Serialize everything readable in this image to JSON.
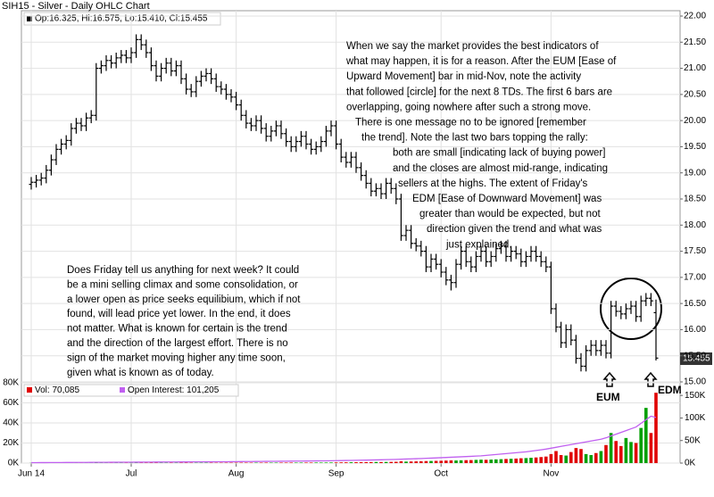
{
  "chart_data": [
    {
      "type": "ohlc",
      "title": "SIH15 - Silver - Daily OHLC Chart",
      "legend": "Op:16.325, Hi:16.575, Lo:15.410, Cl:15.455",
      "last_price": 15.455,
      "color": "#000000",
      "grid": true,
      "categories": [
        "Jun 14",
        null,
        null,
        null,
        null,
        null,
        null,
        null,
        null,
        null,
        null,
        null,
        null,
        null,
        null,
        null,
        null,
        null,
        null,
        null,
        "Jul",
        null,
        null,
        null,
        null,
        null,
        null,
        null,
        null,
        null,
        null,
        null,
        null,
        null,
        null,
        null,
        null,
        null,
        null,
        null,
        null,
        "Aug",
        null,
        null,
        null,
        null,
        null,
        null,
        null,
        null,
        null,
        null,
        null,
        null,
        null,
        null,
        null,
        null,
        null,
        null,
        null,
        "Sep",
        null,
        null,
        null,
        null,
        null,
        null,
        null,
        null,
        null,
        null,
        null,
        null,
        null,
        null,
        null,
        null,
        null,
        null,
        null,
        null,
        "Oct",
        null,
        null,
        null,
        null,
        null,
        null,
        null,
        null,
        null,
        null,
        null,
        null,
        null,
        null,
        null,
        null,
        null,
        null,
        null,
        null,
        null,
        "Nov",
        null,
        null,
        null,
        null,
        null,
        null,
        null,
        null,
        null,
        null,
        null,
        null,
        null,
        null,
        null,
        null,
        null,
        null,
        null,
        null,
        null
      ],
      "open": [
        18.78,
        18.82,
        18.86,
        18.9,
        19.05,
        19.25,
        19.45,
        19.55,
        19.62,
        19.85,
        19.95,
        19.9,
        20.05,
        20.1,
        21.0,
        21.05,
        21.15,
        21.1,
        21.2,
        21.25,
        21.2,
        21.3,
        21.55,
        21.45,
        21.3,
        21.05,
        20.85,
        21.0,
        21.1,
        20.95,
        21.05,
        20.8,
        20.6,
        20.55,
        20.75,
        20.85,
        20.9,
        20.8,
        20.65,
        20.6,
        20.5,
        20.45,
        20.3,
        20.1,
        19.95,
        19.9,
        20.0,
        19.85,
        19.7,
        19.8,
        19.9,
        19.75,
        19.6,
        19.5,
        19.6,
        19.7,
        19.55,
        19.45,
        19.5,
        19.6,
        19.8,
        19.9,
        19.55,
        19.3,
        19.2,
        19.3,
        19.1,
        18.95,
        18.8,
        18.65,
        18.7,
        18.6,
        18.8,
        18.7,
        18.5,
        17.8,
        17.9,
        17.65,
        17.6,
        17.5,
        17.2,
        17.35,
        17.25,
        17.1,
        16.95,
        16.9,
        17.25,
        17.5,
        17.3,
        17.2,
        17.4,
        17.5,
        17.3,
        17.4,
        17.55,
        17.6,
        17.4,
        17.5,
        17.45,
        17.3,
        17.4,
        17.5,
        17.4,
        17.3,
        17.2,
        16.4,
        16.05,
        15.75,
        16.0,
        15.8,
        15.45,
        15.3,
        15.6,
        15.7,
        15.6,
        15.7,
        15.55,
        16.45,
        16.35,
        16.3,
        16.4,
        16.45,
        16.25,
        16.55,
        16.6,
        16.325
      ],
      "high": [
        18.92,
        18.96,
        19.0,
        19.15,
        19.35,
        19.55,
        19.65,
        19.72,
        19.95,
        20.05,
        20.05,
        20.15,
        20.2,
        21.1,
        21.15,
        21.25,
        21.25,
        21.3,
        21.35,
        21.35,
        21.4,
        21.65,
        21.65,
        21.55,
        21.4,
        21.15,
        21.1,
        21.2,
        21.2,
        21.15,
        21.15,
        20.9,
        20.7,
        20.85,
        20.95,
        21.0,
        21.0,
        20.9,
        20.75,
        20.7,
        20.6,
        20.55,
        20.4,
        20.2,
        20.05,
        20.1,
        20.1,
        19.95,
        19.9,
        20.0,
        20.0,
        19.85,
        19.7,
        19.7,
        19.8,
        19.8,
        19.65,
        19.6,
        19.7,
        19.9,
        20.0,
        20.0,
        19.65,
        19.4,
        19.4,
        19.4,
        19.2,
        19.05,
        18.9,
        18.8,
        18.8,
        18.9,
        18.9,
        18.8,
        18.6,
        18.0,
        18.0,
        17.75,
        17.7,
        17.6,
        17.45,
        17.45,
        17.35,
        17.2,
        17.05,
        17.35,
        17.6,
        17.6,
        17.4,
        17.5,
        17.6,
        17.6,
        17.5,
        17.65,
        17.7,
        17.7,
        17.6,
        17.6,
        17.55,
        17.5,
        17.6,
        17.6,
        17.5,
        17.4,
        17.3,
        16.5,
        16.15,
        16.1,
        16.1,
        15.9,
        15.55,
        15.7,
        15.8,
        15.8,
        15.8,
        15.8,
        16.55,
        16.55,
        16.45,
        16.5,
        16.55,
        16.55,
        16.65,
        16.7,
        16.7,
        16.575
      ],
      "low": [
        18.68,
        18.72,
        18.76,
        18.8,
        18.95,
        19.15,
        19.35,
        19.45,
        19.52,
        19.75,
        19.8,
        19.8,
        19.95,
        20.0,
        20.9,
        20.95,
        21.0,
        21.0,
        21.1,
        21.1,
        21.1,
        21.2,
        21.35,
        21.2,
        20.95,
        20.75,
        20.75,
        20.9,
        20.85,
        20.85,
        20.7,
        20.5,
        20.45,
        20.45,
        20.65,
        20.75,
        20.7,
        20.55,
        20.5,
        20.4,
        20.35,
        20.2,
        20.0,
        19.85,
        19.8,
        19.8,
        19.75,
        19.6,
        19.6,
        19.7,
        19.65,
        19.5,
        19.4,
        19.4,
        19.5,
        19.45,
        19.35,
        19.35,
        19.4,
        19.5,
        19.7,
        19.45,
        19.2,
        19.1,
        19.1,
        19.0,
        18.85,
        18.7,
        18.55,
        18.55,
        18.5,
        18.5,
        18.6,
        18.4,
        17.7,
        17.7,
        17.55,
        17.5,
        17.4,
        17.1,
        17.1,
        17.15,
        17.0,
        16.85,
        16.75,
        16.8,
        17.15,
        17.2,
        17.1,
        17.1,
        17.3,
        17.2,
        17.2,
        17.3,
        17.45,
        17.3,
        17.3,
        17.35,
        17.2,
        17.2,
        17.3,
        17.3,
        17.2,
        17.1,
        16.3,
        15.95,
        15.65,
        15.65,
        15.7,
        15.35,
        15.2,
        15.2,
        15.5,
        15.5,
        15.5,
        15.45,
        15.45,
        16.25,
        16.2,
        16.2,
        16.3,
        16.15,
        16.15,
        16.45,
        16.45,
        15.41
      ],
      "close": [
        18.82,
        18.86,
        18.9,
        19.05,
        19.25,
        19.45,
        19.55,
        19.62,
        19.85,
        19.95,
        19.9,
        20.05,
        20.1,
        21.0,
        21.05,
        21.15,
        21.1,
        21.2,
        21.25,
        21.2,
        21.3,
        21.55,
        21.45,
        21.3,
        21.05,
        20.85,
        21.0,
        21.1,
        20.95,
        21.05,
        20.8,
        20.6,
        20.55,
        20.75,
        20.85,
        20.9,
        20.8,
        20.65,
        20.6,
        20.5,
        20.45,
        20.3,
        20.1,
        19.95,
        19.9,
        20.0,
        19.85,
        19.7,
        19.8,
        19.9,
        19.75,
        19.6,
        19.5,
        19.6,
        19.7,
        19.55,
        19.45,
        19.5,
        19.6,
        19.8,
        19.9,
        19.55,
        19.3,
        19.2,
        19.3,
        19.1,
        18.95,
        18.8,
        18.65,
        18.7,
        18.6,
        18.8,
        18.7,
        18.5,
        17.8,
        17.9,
        17.65,
        17.6,
        17.5,
        17.2,
        17.35,
        17.25,
        17.1,
        16.95,
        16.9,
        17.25,
        17.5,
        17.3,
        17.2,
        17.4,
        17.5,
        17.3,
        17.4,
        17.55,
        17.6,
        17.4,
        17.5,
        17.45,
        17.3,
        17.4,
        17.5,
        17.4,
        17.3,
        17.2,
        16.4,
        16.05,
        15.75,
        16.0,
        15.8,
        15.45,
        15.3,
        15.6,
        15.7,
        15.6,
        15.7,
        15.55,
        16.45,
        16.35,
        16.3,
        16.4,
        16.45,
        16.25,
        16.55,
        16.6,
        16.55,
        15.455
      ],
      "ylim": [
        15,
        22
      ],
      "yticks": [
        {
          "value": 15,
          "label": "15.00"
        },
        {
          "value": 15.5,
          "label": "15.50"
        },
        {
          "value": 16,
          "label": "16.00"
        },
        {
          "value": 16.5,
          "label": "16.50"
        },
        {
          "value": 17,
          "label": "17.00"
        },
        {
          "value": 17.5,
          "label": "17.50"
        },
        {
          "value": 18,
          "label": "18.00"
        },
        {
          "value": 18.5,
          "label": "18.50"
        },
        {
          "value": 19,
          "label": "19.00"
        },
        {
          "value": 19.5,
          "label": "19.50"
        },
        {
          "value": 20,
          "label": "20.00"
        },
        {
          "value": 20.5,
          "label": "20.50"
        },
        {
          "value": 21,
          "label": "21.00"
        },
        {
          "value": 21.5,
          "label": "21.50"
        },
        {
          "value": 22,
          "label": "22.00"
        }
      ],
      "annotations": [
        {
          "lines": [
            "When we say the market provides the best indicators of",
            "what may happen, it is for a reason.  After the EUM [Ease of",
            "Upward Movement] bar in mid-Nov, note the activity",
            "that followed [circle] for the next 8 TDs.  The first 6 bars are",
            "overlapping, going nowhere after such a strong move.",
            "There is one message no to be ignored [remember",
            "the trend].  Note the last two bars topping the rally:",
            "both are small [indicating lack of buying power]",
            "and the closes are almost mid-range, indicating",
            "sellers at the highs.  The extent of Friday's",
            "EDM [Ease of Downward Movement] was",
            "greater than would be expected, but not",
            "direction given the trend and what was",
            "just explained."
          ]
        },
        {
          "lines": [
            "Does Friday tell us anything for next week?  It could",
            "be a mini selling climax and some consolidation, or",
            "a lower open as price seeks equilibium, which if not",
            "found, will lead price yet lower.  In the end, it does",
            "not matter.  What is known for certain is the trend",
            "and the direction of the largest effort.  There is no",
            "sign of the market moving higher any time soon,",
            "given what is known as of today."
          ]
        },
        {
          "lines": [
            "EUM"
          ]
        },
        {
          "lines": [
            "EDM"
          ]
        }
      ]
    },
    {
      "type": "volume",
      "up_color": "#00a000",
      "down_color": "#e00000",
      "series": [
        {
          "name": "Vol: 70,085",
          "color": "#e00000",
          "values": [
            150,
            120,
            180,
            200,
            160,
            140,
            170,
            190,
            210,
            230,
            180,
            200,
            220,
            400,
            300,
            250,
            200,
            260,
            240,
            220,
            230,
            300,
            280,
            260,
            310,
            290,
            250,
            270,
            300,
            280,
            320,
            340,
            300,
            280,
            310,
            330,
            350,
            300,
            320,
            340,
            360,
            380,
            400,
            420,
            390,
            410,
            430,
            450,
            420,
            440,
            460,
            480,
            500,
            470,
            490,
            510,
            530,
            550,
            520,
            560,
            600,
            650,
            700,
            750,
            800,
            850,
            900,
            950,
            1000,
            1100,
            1050,
            1150,
            1200,
            1300,
            1800,
            1500,
            1600,
            1700,
            1800,
            2000,
            2100,
            2200,
            2300,
            2500,
            2700,
            2600,
            2800,
            2900,
            3000,
            3200,
            3400,
            3300,
            3500,
            3700,
            3900,
            4100,
            4300,
            4500,
            4800,
            5000,
            5300,
            5600,
            6000,
            6500,
            9000,
            12000,
            8000,
            7500,
            11000,
            15000,
            14000,
            9000,
            8000,
            10000,
            12000,
            18000,
            30000,
            22000,
            17000,
            25000,
            21000,
            20000,
            35000,
            55000,
            30000,
            70085
          ]
        },
        {
          "name": "Open Interest: 101,205",
          "color": "#c060f0",
          "axis": "y2",
          "values": [
            1000,
            1050,
            1100,
            1150,
            1200,
            1250,
            1300,
            1350,
            1400,
            1450,
            1500,
            1550,
            1600,
            1700,
            1750,
            1800,
            1850,
            1900,
            1950,
            2000,
            2050,
            2100,
            2150,
            2200,
            2250,
            2300,
            2350,
            2400,
            2450,
            2500,
            2550,
            2600,
            2650,
            2700,
            2750,
            2800,
            2850,
            2900,
            2950,
            3000,
            3100,
            3200,
            3300,
            3400,
            3500,
            3600,
            3700,
            3800,
            3900,
            4000,
            4100,
            4200,
            4300,
            4400,
            4500,
            4600,
            4700,
            4800,
            4900,
            5000,
            5200,
            5400,
            5600,
            5800,
            6000,
            6200,
            6400,
            6600,
            6800,
            7000,
            7300,
            7600,
            7900,
            8200,
            8600,
            9000,
            9400,
            9800,
            10200,
            10600,
            11000,
            11500,
            12000,
            12500,
            13000,
            13500,
            14000,
            14500,
            15000,
            15500,
            16000,
            17000,
            18000,
            19000,
            20000,
            21000,
            22000,
            23000,
            24000,
            25000,
            26500,
            28000,
            29500,
            31000,
            33000,
            35000,
            37000,
            39000,
            41000,
            43000,
            45000,
            47000,
            49000,
            51000,
            53000,
            56000,
            60000,
            64000,
            68000,
            72000,
            76000,
            80000,
            88000,
            96000,
            104000,
            101205
          ]
        }
      ],
      "ylim": [
        0,
        80000
      ],
      "yticks": [
        {
          "value": 0,
          "label": "0K"
        },
        {
          "value": 20000,
          "label": "20K"
        },
        {
          "value": 40000,
          "label": "40K"
        },
        {
          "value": 60000,
          "label": "60K"
        },
        {
          "value": 80000,
          "label": "80K"
        }
      ],
      "y2lim": [
        0,
        178000
      ],
      "y2ticks": [
        {
          "value": 0,
          "label": "0K"
        },
        {
          "value": 50000,
          "label": "50K"
        },
        {
          "value": 100000,
          "label": "100K"
        },
        {
          "value": 150000,
          "label": "150K"
        }
      ]
    }
  ]
}
